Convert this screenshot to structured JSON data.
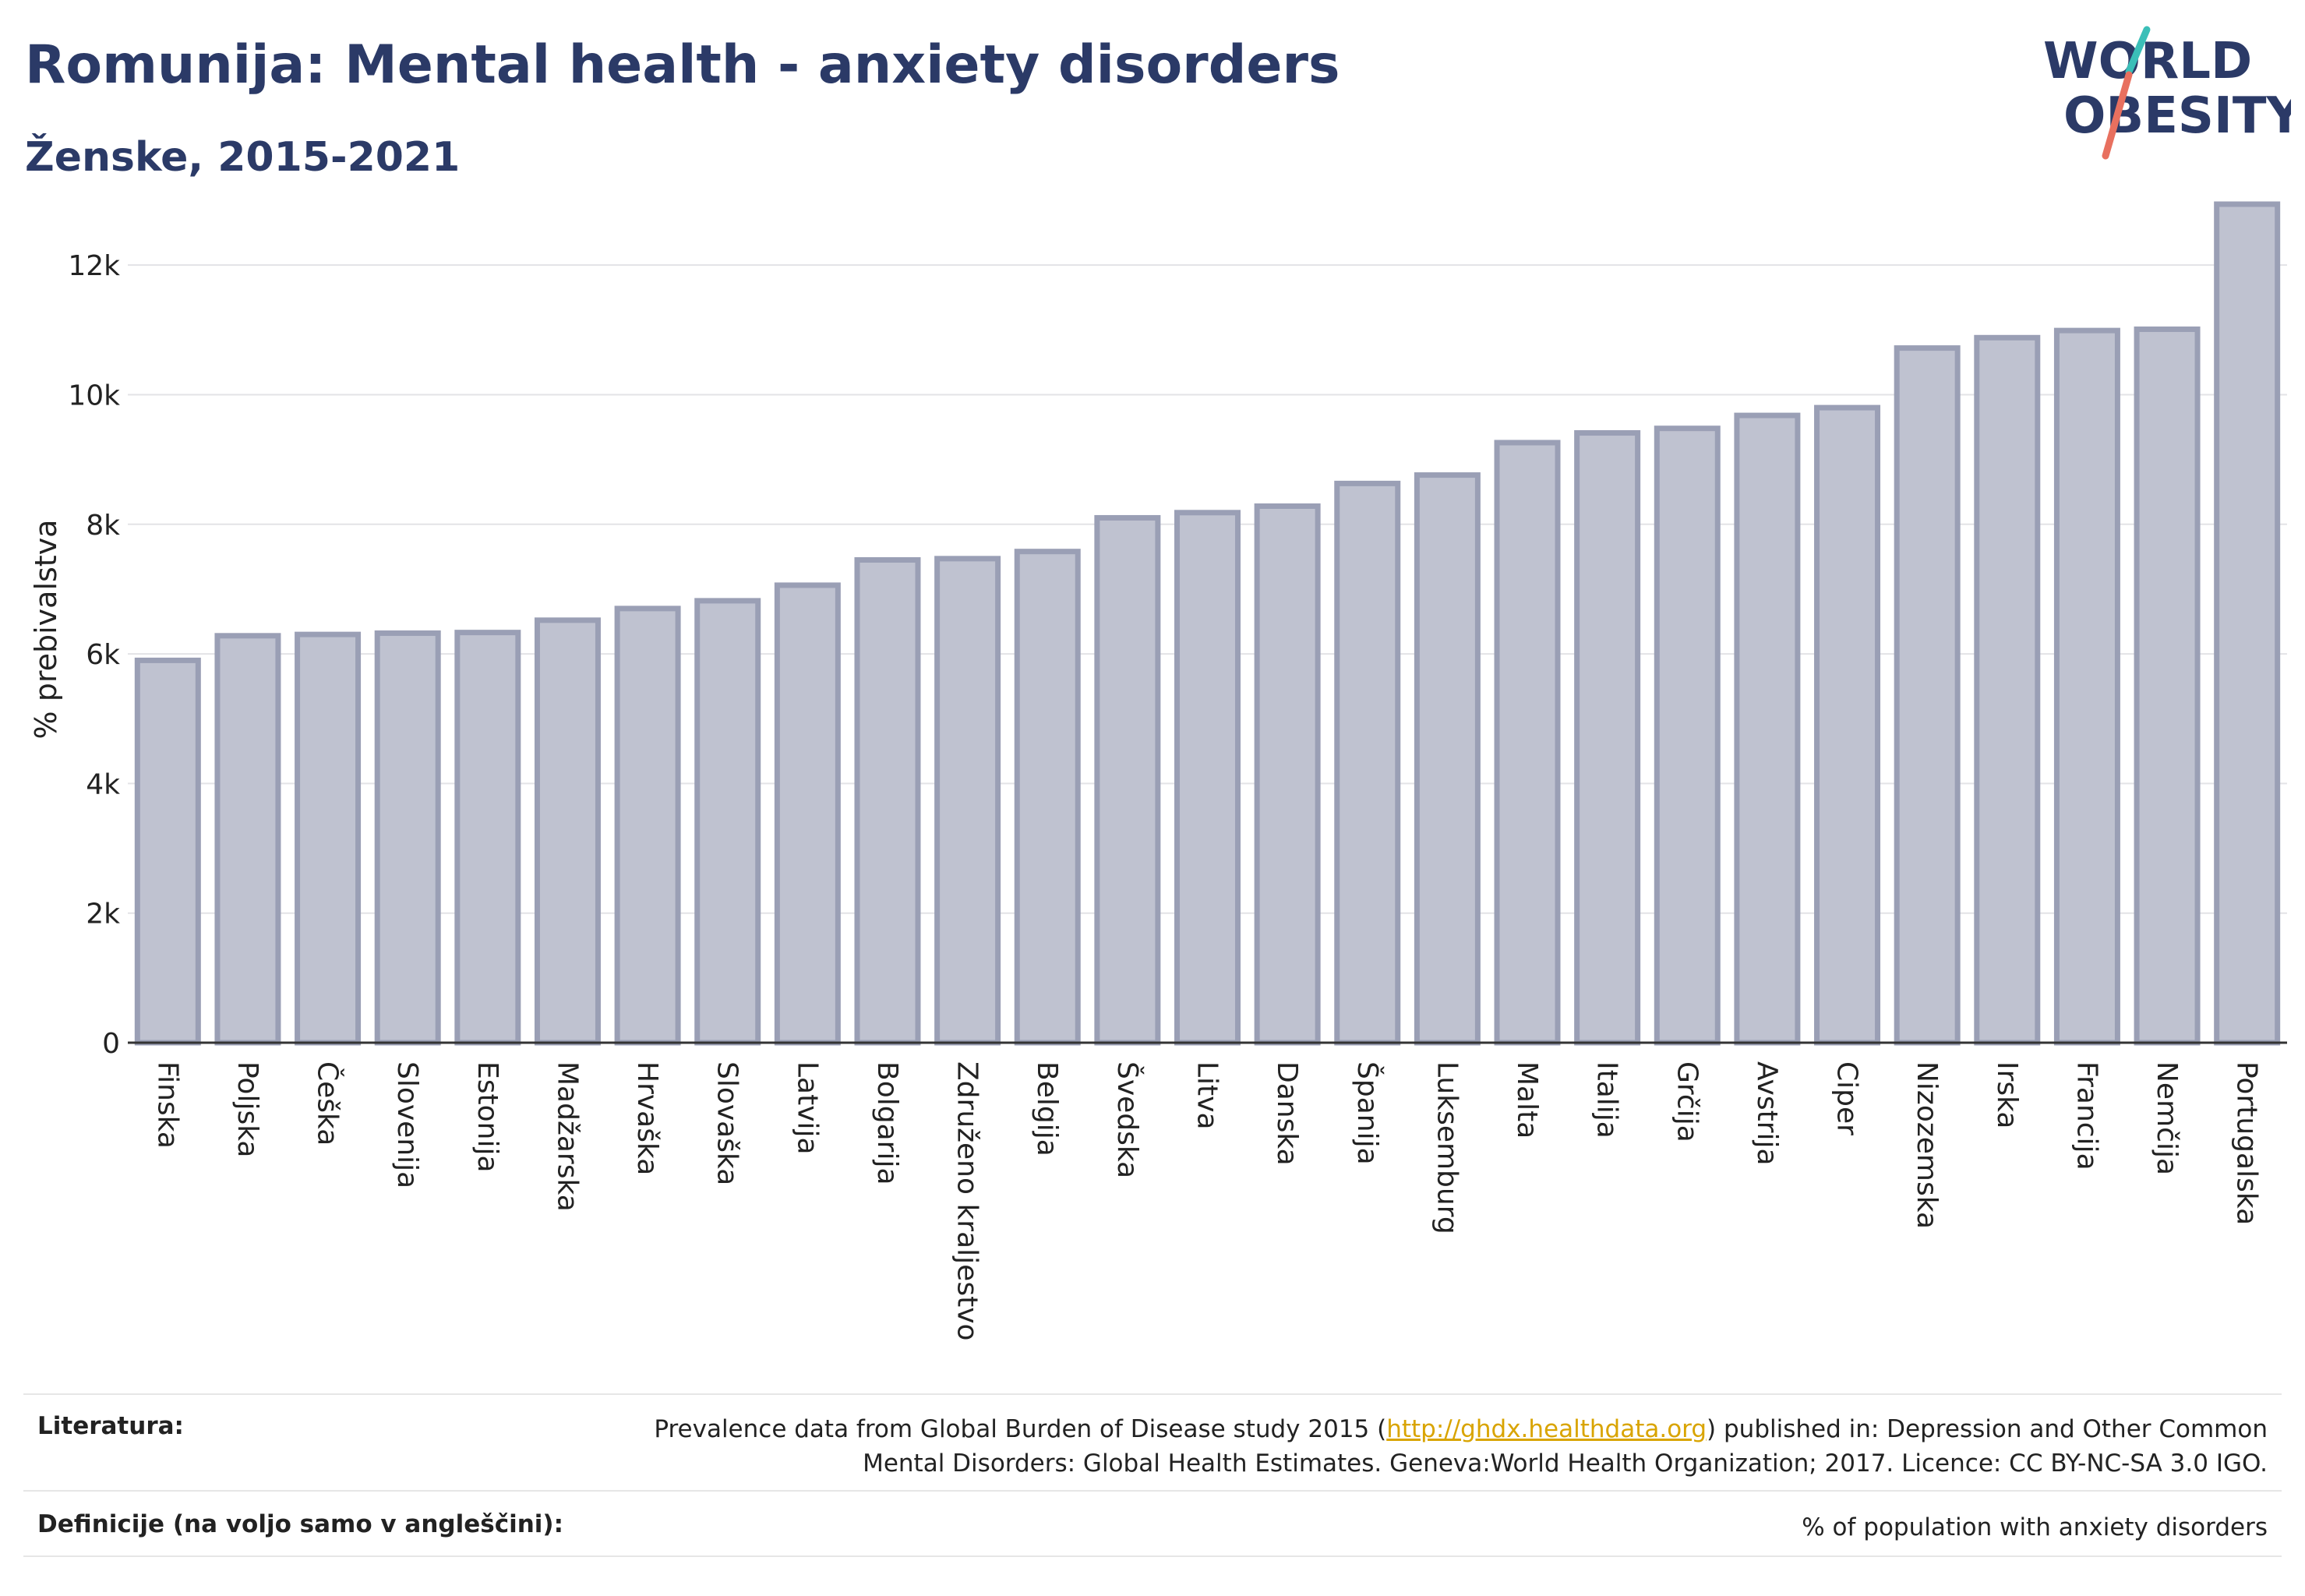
{
  "header": {
    "title": "Romunija: Mental health - anxiety disorders",
    "subtitle": "Ženske, 2015-2021"
  },
  "logo": {
    "line1": "WORLD",
    "line2": "OBESITY"
  },
  "chart_data": {
    "type": "bar",
    "ylabel": "% prebivalstva",
    "ylim": [
      0,
      13000
    ],
    "yticks": [
      0,
      2000,
      4000,
      6000,
      8000,
      10000,
      12000
    ],
    "ytick_labels": [
      "0",
      "2k",
      "4k",
      "6k",
      "8k",
      "10k",
      "12k"
    ],
    "grid": true,
    "categories": [
      "Finska",
      "Poljska",
      "Češka",
      "Slovenija",
      "Estonija",
      "Madžarska",
      "Hrvaška",
      "Slovaška",
      "Latvija",
      "Bolgarija",
      "Združeno kraljestvo",
      "Belgija",
      "Švedska",
      "Litva",
      "Danska",
      "Španija",
      "Luksemburg",
      "Malta",
      "Italija",
      "Grčija",
      "Avstrija",
      "Ciper",
      "Nizozemska",
      "Irska",
      "Francija",
      "Nemčija",
      "Portugalska"
    ],
    "values": [
      5900,
      6280,
      6300,
      6320,
      6330,
      6520,
      6700,
      6820,
      7060,
      7450,
      7470,
      7580,
      8100,
      8180,
      8280,
      8630,
      8760,
      9260,
      9410,
      9480,
      9680,
      9800,
      10720,
      10880,
      10990,
      11010,
      12940
    ],
    "bar_color": "#bfc2d0",
    "bar_edge_color": "#9a9fb5"
  },
  "footer": {
    "sources_label": "Literatura:",
    "sources_text_before": "Prevalence data from Global Burden of Disease study 2015 (",
    "sources_link": "http://ghdx.healthdata.org",
    "sources_text_after": ") published in: Depression and Other Common",
    "sources_text_line2": "Mental Disorders: Global Health Estimates. Geneva:World Health Organization; 2017. Licence: CC BY-NC-SA 3.0 IGO.",
    "definitions_label": "Definicije (na voljo samo v angleščini):",
    "definitions_text": "% of population with anxiety disorders"
  },
  "colors": {
    "title": "#2b3a67",
    "logo_teal": "#3bbfb8",
    "logo_coral": "#e8705f"
  }
}
